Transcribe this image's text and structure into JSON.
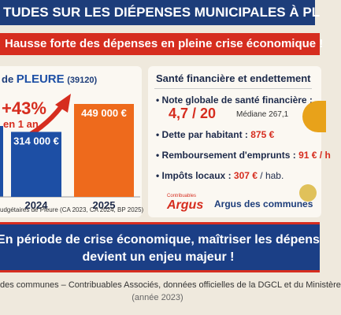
{
  "header": {
    "title": "TUDES SUR LES DIÉPENSES MUNICIPALES À PL",
    "subtitle": "Hausse forte des dépenses en pleine crise économique !"
  },
  "left_panel": {
    "heading_prefix": "de",
    "heading_name": "PLEURE",
    "heading_code": "(39120)",
    "growth": "+43%",
    "growth_period": "en 1 an",
    "bars": [
      {
        "year": "2024",
        "value": 314000,
        "label": "314 000 €"
      },
      {
        "year": "2025",
        "value": 449000,
        "label": "449 000 €"
      }
    ],
    "source": "udgétaires de Pleure (CA 2023, CA 2024, BP 2025)"
  },
  "right_panel": {
    "heading": "Santé financière et endettement",
    "items": [
      {
        "label": "Note globale de santé financière :",
        "value": "4,7 / 20",
        "note": "Médiane 267,1"
      },
      {
        "label": "Dette par habitant :",
        "value": "875 €"
      },
      {
        "label": "Remboursement d'emprunts :",
        "value": "91 € / h"
      },
      {
        "label": "Impôts locaux :",
        "value": "307 €",
        "note": "/ hab."
      }
    ],
    "logo_small": "Contribuables",
    "logo_big": "Argus",
    "logo_text": "Argus des communes"
  },
  "banner": {
    "line1": "En période de crise économique, maîtriser les dépens",
    "line2": "devient un enjeu majeur !"
  },
  "footer": {
    "line1": "des communes – Contribuables Associés, données officielles de la DGCL et du Ministère",
    "line2": "(année 2023)"
  }
}
